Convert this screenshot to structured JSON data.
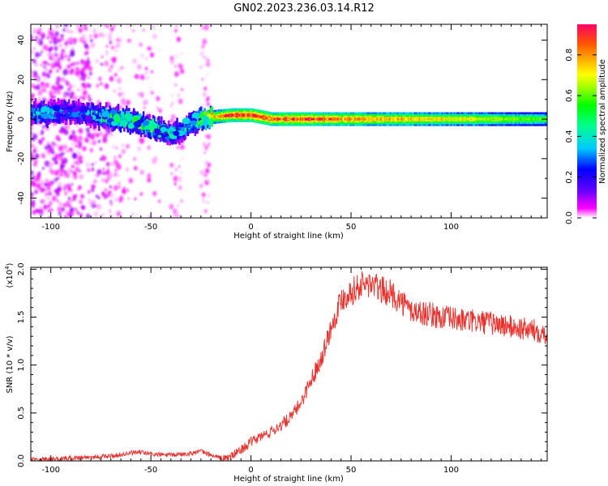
{
  "figure": {
    "title": "GN02.2023.236.03.14.R12"
  },
  "chart_data": [
    {
      "type": "heatmap",
      "title": "",
      "xlabel": "Height of straight line (km)",
      "ylabel": "Frequency (Hz)",
      "xlim": [
        -110,
        148
      ],
      "ylim": [
        -50,
        48
      ],
      "x_ticks": [
        -100,
        -50,
        0,
        50,
        100
      ],
      "y_ticks": [
        -40,
        -20,
        0,
        20,
        40
      ],
      "colorbar": {
        "label": "Normalized spectral amplitude",
        "range": [
          0,
          0.95
        ],
        "ticks": [
          "0.0",
          "0.2",
          "0.4",
          "0.6",
          "0.8"
        ],
        "colors": [
          "#ffffff",
          "#ff00ff",
          "#6600ff",
          "#0000ff",
          "#00ccff",
          "#00ff88",
          "#00ff00",
          "#88ff00",
          "#ffff00",
          "#ffaa00",
          "#ff5500",
          "#ff0066"
        ]
      },
      "ridge": {
        "description_points_x": [
          -110,
          -100,
          -90,
          -80,
          -70,
          -60,
          -50,
          -40,
          -35,
          -30,
          -25,
          -20,
          -10,
          0,
          10,
          20,
          50,
          100,
          148
        ],
        "frequency_hz": [
          3,
          3,
          4,
          2,
          1,
          -1,
          -4,
          -8,
          -6,
          -2,
          0,
          1,
          2,
          2,
          0,
          0,
          0,
          0,
          0
        ],
        "peak_amplitude": [
          0.35,
          0.35,
          0.3,
          0.35,
          0.45,
          0.5,
          0.45,
          0.4,
          0.35,
          0.35,
          0.5,
          0.7,
          0.9,
          0.9,
          0.85,
          0.9,
          0.8,
          0.7,
          0.55
        ]
      }
    },
    {
      "type": "line",
      "title": "",
      "xlabel": "Height of straight line (km)",
      "ylabel": "SNR (10 * v/v)",
      "y_multiplier_label": "(x10",
      "y_multiplier_exp": "4",
      "xlim": [
        -110,
        148
      ],
      "ylim": [
        0,
        2.02
      ],
      "x_ticks": [
        -100,
        -50,
        0,
        50,
        100
      ],
      "y_ticks": [
        "0.0",
        "0.5",
        "1.0",
        "1.5",
        "2.0"
      ],
      "line_color": "#e8302c",
      "series": [
        {
          "x": [
            -110,
            -100,
            -90,
            -80,
            -70,
            -60,
            -55,
            -50,
            -40,
            -30,
            -25,
            -20,
            -15,
            -10,
            -5,
            0,
            5,
            10,
            15,
            20,
            25,
            30,
            35,
            40,
            45,
            50,
            55,
            60,
            65,
            70,
            75,
            80,
            85,
            90,
            95,
            100,
            105,
            110,
            115,
            120,
            125,
            130,
            135,
            140,
            145,
            148
          ],
          "y": [
            0.01,
            0.01,
            0.02,
            0.03,
            0.04,
            0.07,
            0.08,
            0.06,
            0.05,
            0.07,
            0.09,
            0.05,
            0.02,
            0.05,
            0.12,
            0.2,
            0.26,
            0.31,
            0.38,
            0.46,
            0.62,
            0.85,
            1.08,
            1.4,
            1.7,
            1.78,
            1.85,
            1.86,
            1.8,
            1.76,
            1.68,
            1.58,
            1.56,
            1.54,
            1.51,
            1.5,
            1.48,
            1.47,
            1.46,
            1.45,
            1.43,
            1.41,
            1.39,
            1.38,
            1.36,
            1.33
          ]
        }
      ]
    }
  ]
}
